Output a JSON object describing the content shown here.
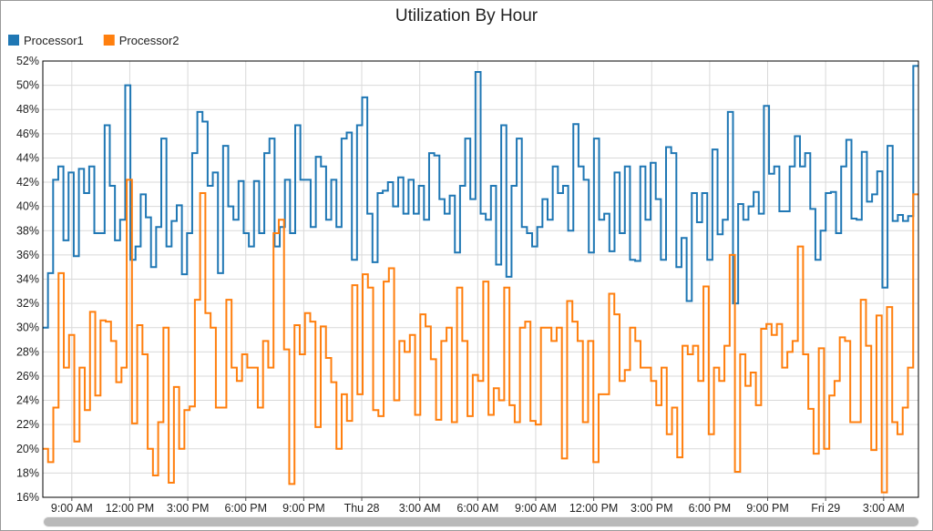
{
  "chart_data": {
    "type": "line",
    "step": true,
    "title": "Utilization By Hour",
    "xlabel": "",
    "ylabel": "",
    "ylim": [
      16,
      52
    ],
    "y_ticks": [
      16,
      18,
      20,
      22,
      24,
      26,
      28,
      30,
      32,
      34,
      36,
      38,
      40,
      42,
      44,
      46,
      48,
      50,
      52
    ],
    "y_tick_suffix": "%",
    "x_tick_labels": [
      "9:00 AM",
      "12:00 PM",
      "3:00 PM",
      "6:00 PM",
      "9:00 PM",
      "Thu 28",
      "3:00 AM",
      "6:00 AM",
      "9:00 AM",
      "12:00 PM",
      "3:00 PM",
      "6:00 PM",
      "9:00 PM",
      "Fri 29",
      "3:00 AM"
    ],
    "x_tick_hours": [
      9,
      12,
      15,
      18,
      21,
      24,
      27,
      30,
      33,
      36,
      39,
      42,
      45,
      48,
      51
    ],
    "x_start_hour": 7.5,
    "x_end_hour": 52.8,
    "grid": true,
    "legend": "top-left",
    "series": [
      {
        "name": "Processor1",
        "color": "#1f77b4",
        "values": [
          30.0,
          34.5,
          42.2,
          43.3,
          37.2,
          42.8,
          35.9,
          43.1,
          41.1,
          43.3,
          37.8,
          37.8,
          46.7,
          41.7,
          37.2,
          38.9,
          50.0,
          35.6,
          36.7,
          41.0,
          39.1,
          35.0,
          38.3,
          45.6,
          36.7,
          38.8,
          40.1,
          34.4,
          37.8,
          44.4,
          47.8,
          47.0,
          41.7,
          42.8,
          34.5,
          45.0,
          40.0,
          38.9,
          42.1,
          37.8,
          36.7,
          42.1,
          37.8,
          44.4,
          45.6,
          36.7,
          38.3,
          42.2,
          37.8,
          46.7,
          42.2,
          42.2,
          38.3,
          44.1,
          43.3,
          38.9,
          42.2,
          38.3,
          45.6,
          46.1,
          35.6,
          46.7,
          49.0,
          39.4,
          35.4,
          41.1,
          41.3,
          42.0,
          40.0,
          42.4,
          39.4,
          42.2,
          39.4,
          41.7,
          38.9,
          44.4,
          44.2,
          40.6,
          39.4,
          40.9,
          36.2,
          41.7,
          45.6,
          40.6,
          51.1,
          39.4,
          38.9,
          41.7,
          35.2,
          46.7,
          34.2,
          41.7,
          45.6,
          38.3,
          37.8,
          36.7,
          38.3,
          40.6,
          38.9,
          43.3,
          41.1,
          41.7,
          38.0,
          46.8,
          43.3,
          42.2,
          36.2,
          45.6,
          38.9,
          39.4,
          36.3,
          42.8,
          37.8,
          43.3,
          35.6,
          35.5,
          43.3,
          38.9,
          43.6,
          40.6,
          35.6,
          44.9,
          44.4,
          35.0,
          37.4,
          32.2,
          41.1,
          38.7,
          41.1,
          35.6,
          44.7,
          37.7,
          38.9,
          47.8,
          32.0,
          40.2,
          38.9,
          40.0,
          41.2,
          39.4,
          48.3,
          42.7,
          43.3,
          39.6,
          39.6,
          43.3,
          45.8,
          43.3,
          44.4,
          39.8,
          35.6,
          38.0,
          41.1,
          41.2,
          37.8,
          43.3,
          45.5,
          39.0,
          38.9,
          44.5,
          40.4,
          41.0,
          42.9,
          33.3,
          45.0,
          38.8,
          39.3,
          38.8,
          39.2,
          51.6
        ]
      },
      {
        "name": "Processor2",
        "color": "#ff7f0e",
        "values": [
          20.0,
          18.9,
          23.4,
          34.5,
          26.7,
          29.4,
          20.6,
          26.7,
          23.2,
          31.3,
          24.4,
          30.6,
          30.5,
          28.9,
          25.5,
          26.7,
          42.2,
          22.1,
          30.2,
          27.8,
          20.0,
          17.8,
          22.2,
          30.0,
          17.2,
          25.1,
          20.0,
          23.2,
          23.5,
          32.3,
          41.1,
          31.2,
          30.0,
          23.4,
          23.4,
          32.3,
          26.7,
          25.6,
          27.8,
          26.7,
          26.7,
          23.4,
          28.9,
          26.7,
          37.8,
          38.9,
          28.2,
          17.1,
          30.2,
          27.8,
          31.2,
          30.5,
          21.8,
          30.1,
          27.5,
          25.5,
          20.0,
          24.5,
          22.3,
          33.5,
          24.5,
          34.4,
          33.3,
          23.2,
          22.7,
          33.8,
          34.9,
          24.0,
          28.9,
          28.0,
          29.4,
          22.8,
          31.1,
          30.1,
          27.4,
          22.4,
          28.9,
          30.0,
          22.2,
          33.3,
          28.9,
          22.7,
          26.1,
          25.6,
          33.8,
          22.8,
          25.0,
          24.0,
          33.3,
          23.6,
          22.2,
          30.0,
          30.5,
          22.3,
          22.0,
          30.0,
          30.0,
          28.9,
          30.0,
          19.2,
          32.2,
          30.5,
          28.9,
          22.2,
          28.9,
          18.9,
          24.5,
          24.5,
          32.8,
          31.1,
          25.6,
          26.5,
          30.0,
          28.9,
          26.7,
          26.7,
          25.6,
          23.6,
          26.7,
          21.2,
          23.4,
          19.3,
          28.5,
          27.8,
          28.5,
          25.6,
          33.4,
          21.2,
          26.7,
          25.6,
          28.5,
          36.0,
          18.1,
          27.8,
          25.2,
          26.3,
          23.6,
          29.9,
          30.3,
          29.4,
          30.3,
          26.7,
          28.0,
          28.9,
          36.7,
          27.8,
          23.3,
          19.6,
          28.3,
          20.0,
          24.4,
          25.6,
          29.2,
          28.9,
          22.2,
          22.2,
          32.3,
          28.5,
          19.9,
          31.0,
          16.4,
          31.7,
          22.2,
          21.2,
          23.4,
          26.7,
          41.0
        ]
      }
    ]
  }
}
